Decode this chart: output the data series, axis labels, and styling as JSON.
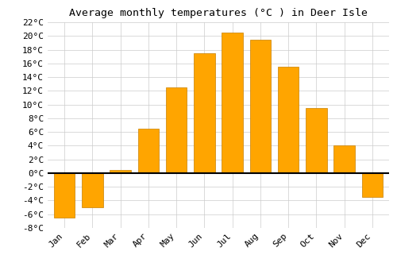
{
  "title": "Average monthly temperatures (°C ) in Deer Isle",
  "months": [
    "Jan",
    "Feb",
    "Mar",
    "Apr",
    "May",
    "Jun",
    "Jul",
    "Aug",
    "Sep",
    "Oct",
    "Nov",
    "Dec"
  ],
  "values": [
    -6.5,
    -5.0,
    0.5,
    6.5,
    12.5,
    17.5,
    20.5,
    19.5,
    15.5,
    9.5,
    4.0,
    -3.5
  ],
  "bar_color": "#FFA500",
  "bar_edge_color": "#C88000",
  "ylim": [
    -8,
    22
  ],
  "yticks": [
    -8,
    -6,
    -4,
    -2,
    0,
    2,
    4,
    6,
    8,
    10,
    12,
    14,
    16,
    18,
    20,
    22
  ],
  "grid_color": "#cccccc",
  "background_color": "#ffffff",
  "title_fontsize": 9.5,
  "tick_fontsize": 8,
  "zero_line_color": "#000000",
  "bar_width": 0.75
}
